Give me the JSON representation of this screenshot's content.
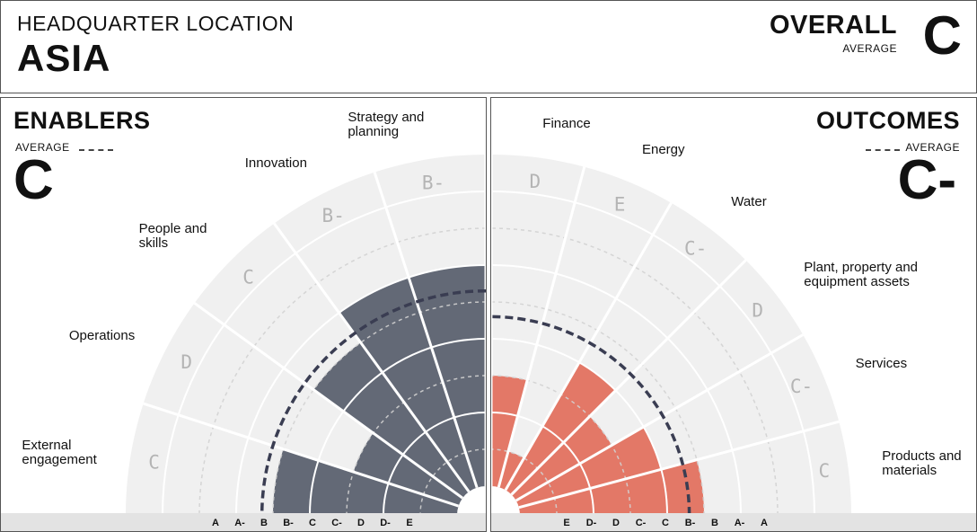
{
  "header": {
    "hq_label": "HEADQUARTER LOCATION",
    "hq_value": "ASIA",
    "overall_label": "OVERALL",
    "overall_sub": "AVERAGE",
    "overall_grade": "C"
  },
  "colors": {
    "enablers": "#636976",
    "outcomes": "#e37867",
    "background_band": "#f0f0f0",
    "average_line": "#3a3d52"
  },
  "chart_data": [
    {
      "type": "radial-bar",
      "title": "ENABLERS",
      "average_label": "AVERAGE",
      "average_grade": "C",
      "average_level": 5.3,
      "scale": [
        "A",
        "A-",
        "B",
        "B-",
        "C",
        "C-",
        "D",
        "D-",
        "E"
      ],
      "categories": [
        "Strategy and planning",
        "Innovation",
        "People and skills",
        "Operations",
        "External engagement"
      ],
      "category_label_lines": [
        [
          "Strategy and",
          "planning"
        ],
        [
          "Innovation"
        ],
        [
          "People and",
          "skills"
        ],
        [
          "Operations"
        ],
        [
          "External",
          "engagement"
        ]
      ],
      "grades": [
        "B-",
        "B-",
        "C",
        "D",
        "C"
      ],
      "values": [
        6,
        6,
        5,
        3,
        5
      ]
    },
    {
      "type": "radial-bar",
      "title": "OUTCOMES",
      "average_label": "AVERAGE",
      "average_grade": "C-",
      "average_level": 4.6,
      "scale": [
        "E",
        "D-",
        "D",
        "C-",
        "C",
        "B-",
        "B",
        "A-",
        "A"
      ],
      "categories": [
        "Products and materials",
        "Services",
        "Plant, property and equipment assets",
        "Water",
        "Energy",
        "Finance"
      ],
      "category_label_lines": [
        [
          "Products and",
          "materials"
        ],
        [
          "Services"
        ],
        [
          "Plant, property and",
          "equipment assets"
        ],
        [
          "Water"
        ],
        [
          "Energy"
        ],
        [
          "Finance"
        ]
      ],
      "grades": [
        "C",
        "C-",
        "D",
        "C-",
        "E",
        "D"
      ],
      "values": [
        5,
        4,
        3,
        4,
        1,
        3
      ]
    }
  ]
}
